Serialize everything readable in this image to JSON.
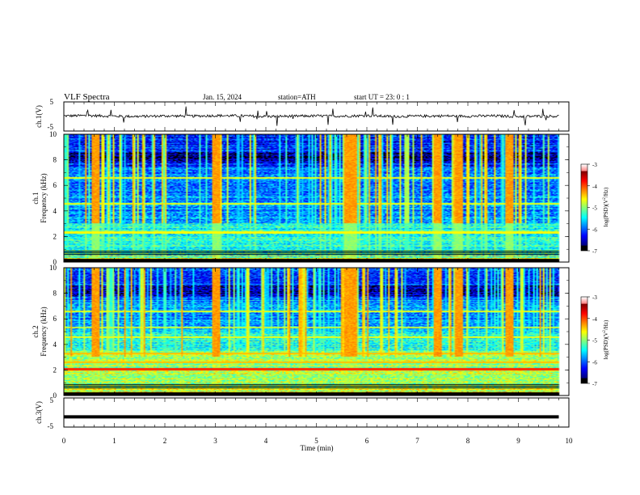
{
  "header": {
    "title": "VLF Spectra",
    "date": "Jan. 15, 2024",
    "station": "station=ATH",
    "start": "start UT =  23: 0 : 1"
  },
  "chart_data": [
    {
      "type": "line",
      "panel": "ch1-waveform",
      "ylabel": "ch.1(V)",
      "ylim": [
        -5,
        5
      ],
      "yticks": [
        "5",
        "-5"
      ],
      "xlim": [
        0,
        10
      ],
      "note_values": "noisy trace around 0 V with spikes",
      "x": [
        0,
        0.5,
        1,
        1.5,
        2,
        2.5,
        3,
        3.5,
        4,
        4.5,
        5,
        5.5,
        6,
        6.5,
        7,
        7.5,
        8,
        8.5,
        9,
        9.5,
        9.8
      ],
      "y": [
        0.2,
        0.3,
        0.1,
        0.0,
        0.2,
        0.1,
        0.3,
        0.2,
        0.0,
        0.1,
        0.2,
        0.1,
        0.3,
        0.0,
        0.1,
        0.2,
        0.1,
        0.2,
        0.0,
        0.1,
        0.1
      ]
    },
    {
      "type": "heatmap",
      "panel": "ch1-spectrogram",
      "ylabel": "ch.1\nFrequency (kHz)",
      "ylim": [
        0,
        10
      ],
      "yticks": [
        "0",
        "2",
        "4",
        "6",
        "8",
        "10"
      ],
      "xlim": [
        0,
        10
      ],
      "colorbar": {
        "label": "log(PSD)(V²/Hz)",
        "range": [
          -7,
          -3
        ],
        "ticks": [
          "-3",
          "-4",
          "-5",
          "-6",
          "-7"
        ]
      }
    },
    {
      "type": "heatmap",
      "panel": "ch2-spectrogram",
      "ylabel": "ch.2\nFrequency (kHz)",
      "ylim": [
        0,
        10
      ],
      "yticks": [
        "0",
        "2",
        "4",
        "6",
        "8",
        "10"
      ],
      "xlim": [
        0,
        10
      ],
      "colorbar": {
        "label": "log(PSD)(V²/Hz)",
        "range": [
          -7,
          -3
        ],
        "ticks": [
          "-3",
          "-4",
          "-5",
          "-6",
          "-7"
        ]
      }
    },
    {
      "type": "line",
      "panel": "ch3-waveform",
      "ylabel": "ch.3(V)",
      "ylim": [
        -5,
        5
      ],
      "yticks": [
        "5",
        "-5"
      ],
      "xlim": [
        0,
        10
      ],
      "x": [
        0,
        9.8
      ],
      "y": [
        -1.5,
        -1.5
      ]
    }
  ],
  "xaxis": {
    "label": "Time (min)",
    "ticks": [
      "0",
      "1",
      "2",
      "3",
      "4",
      "5",
      "6",
      "7",
      "8",
      "9",
      "10"
    ]
  },
  "colors": {
    "jet": [
      "#000000",
      "#00008b",
      "#0000ff",
      "#0080ff",
      "#00ffff",
      "#40ff80",
      "#ffff00",
      "#ff4000",
      "#ff8080",
      "#ffffff"
    ]
  }
}
